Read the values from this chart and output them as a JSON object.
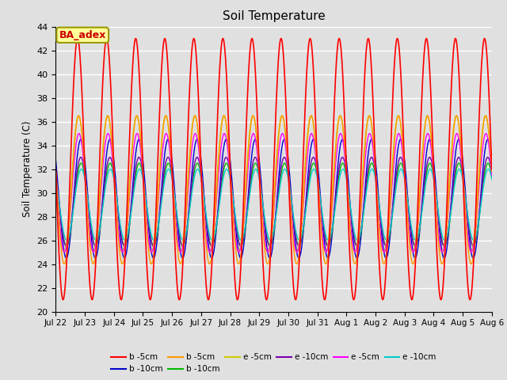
{
  "title": "Soil Temperature",
  "ylabel": "Soil Temperature (C)",
  "ylim": [
    20,
    44
  ],
  "yticks": [
    20,
    22,
    24,
    26,
    28,
    30,
    32,
    34,
    36,
    38,
    40,
    42,
    44
  ],
  "bg_color": "#e0e0e0",
  "grid_color": "white",
  "legend_entries": [
    {
      "label": "b -5cm",
      "color": "#ff0000",
      "linestyle": "-"
    },
    {
      "label": "b -10cm",
      "color": "#0000cc",
      "linestyle": "-"
    },
    {
      "label": "b -5cm",
      "color": "#ff9900",
      "linestyle": "-"
    },
    {
      "label": "b -10cm",
      "color": "#00bb00",
      "linestyle": "-"
    },
    {
      "label": "e -5cm",
      "color": "#cccc00",
      "linestyle": "-"
    },
    {
      "label": "e -10cm",
      "color": "#7700aa",
      "linestyle": "-"
    },
    {
      "label": "e -5cm",
      "color": "#ff00ff",
      "linestyle": "-"
    },
    {
      "label": "e -10cm",
      "color": "#00cccc",
      "linestyle": "-"
    }
  ],
  "xtick_labels": [
    "Jul 22",
    "Jul 23",
    "Jul 24",
    "Jul 25",
    "Jul 26",
    "Jul 27",
    "Jul 28",
    "Jul 29",
    "Jul 30",
    "Jul 31",
    "Aug 1",
    "Aug 2",
    "Aug 3",
    "Aug 4",
    "Aug 5",
    "Aug 6"
  ],
  "annotation_text": "BA_adex",
  "annotation_color": "#cc0000",
  "annotation_bg": "#ffff99",
  "annotation_border": "#999900",
  "n_points": 1500
}
